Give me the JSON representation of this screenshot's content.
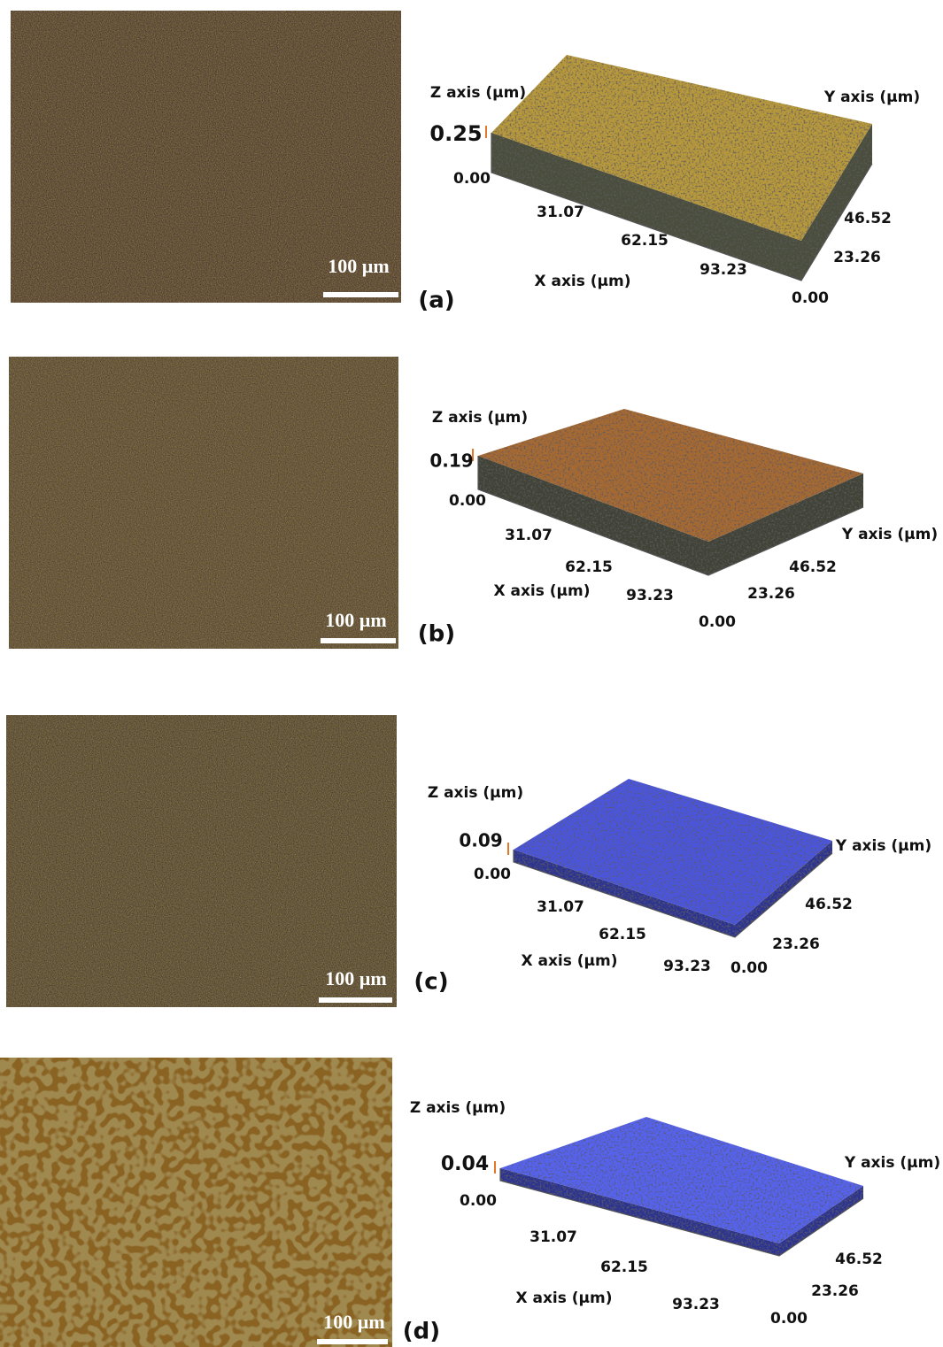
{
  "panels": [
    {
      "label": "(a)",
      "scale_bar": "100 µm",
      "z_axis_title": "Z axis (µm)",
      "z_max": "0.25",
      "z_min": "0.00",
      "x_axis_title": "X axis (µm)",
      "x_ticks": [
        "31.07",
        "62.15",
        "93.23"
      ],
      "y_axis_title": "Y axis (µm)",
      "y_ticks": [
        "46.52",
        "23.26",
        "0.00"
      ]
    },
    {
      "label": "(b)",
      "scale_bar": "100 µm",
      "z_axis_title": "Z axis (µm)",
      "z_max": "0.19",
      "z_min": "0.00",
      "x_axis_title": "X axis (µm)",
      "x_ticks": [
        "31.07",
        "62.15",
        "93.23"
      ],
      "y_axis_title": "Y axis (µm)",
      "y_ticks": [
        "46.52",
        "23.26",
        "0.00"
      ]
    },
    {
      "label": "(c)",
      "scale_bar": "100 µm",
      "z_axis_title": "Z axis (µm)",
      "z_max": "0.09",
      "z_min": "0.00",
      "x_axis_title": "X axis (µm)",
      "x_ticks": [
        "31.07",
        "62.15",
        "93.23"
      ],
      "y_axis_title": "Y axis (µm)",
      "y_ticks": [
        "46.52",
        "23.26",
        "0.00"
      ]
    },
    {
      "label": "(d)",
      "scale_bar": "100 µm",
      "z_axis_title": "Z axis (µm)",
      "z_max": "0.04",
      "z_min": "0.00",
      "x_axis_title": "X axis (µm)",
      "x_ticks": [
        "31.07",
        "62.15",
        "93.23"
      ],
      "y_axis_title": "Y axis (µm)",
      "y_ticks": [
        "46.52",
        "23.26",
        "0.00"
      ]
    }
  ]
}
